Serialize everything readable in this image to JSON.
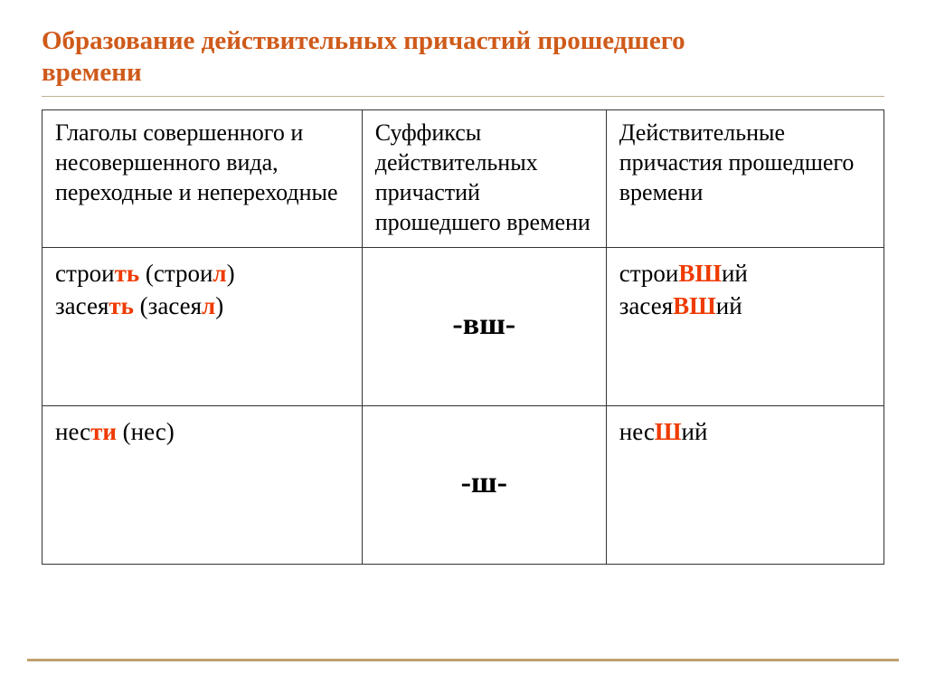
{
  "title_line1": "Образование действительных причастий прошедшего",
  "title_line2": "времени",
  "table": {
    "header": {
      "col1": "Глаголы совершенного и несовершенного вида, переходные и непереходные",
      "col2": "Суффиксы действительных причастий прошедшего времени",
      "col3": "Действительные причастия прошедшего времени"
    },
    "row1": {
      "verb1_stem": "строи",
      "verb1_inf_end": "ть",
      "verb1_past_stem": "строи",
      "verb1_past_end": "л",
      "verb2_stem": "засея",
      "verb2_inf_end": "ть",
      "verb2_past_stem": "засея",
      "verb2_past_end": "л",
      "suffix": "-вш-",
      "p1_stem": "строи",
      "p1_suf": "ВШ",
      "p1_end": "ий",
      "p2_stem": "засея",
      "p2_suf": "ВШ",
      "p2_end": "ий"
    },
    "row2": {
      "verb_stem": "нес",
      "verb_inf_end": "ти",
      "verb_past": "нес",
      "suffix": "-ш-",
      "p_stem": "нес",
      "p_suf": "Ш",
      "p_end": "ий"
    }
  },
  "style": {
    "title_color": "#cf5a1a",
    "highlight_color": "#ef3a00",
    "border_color": "#333333",
    "rule_color": "#c0a070",
    "title_fontsize": 29,
    "cell_fontsize": 27,
    "header_fontsize": 26,
    "suffix_fontsize": 34,
    "bg_color": "#ffffff"
  }
}
